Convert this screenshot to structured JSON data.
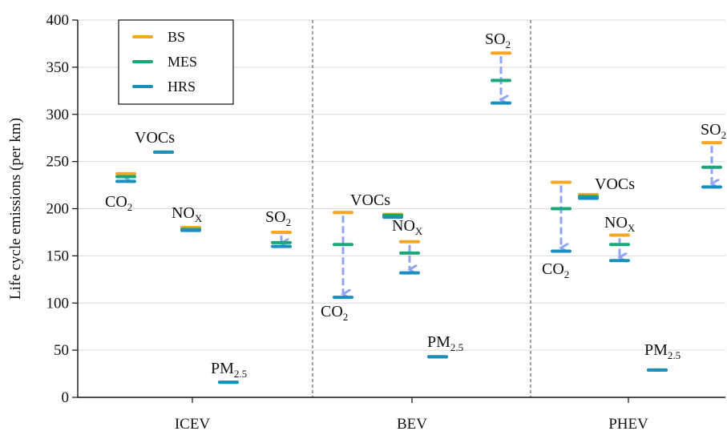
{
  "chart_data": {
    "type": "scatter",
    "ylabel": "Life cycle emissions (per km)",
    "ylim": [
      0,
      400
    ],
    "yticks": [
      0,
      50,
      100,
      150,
      200,
      250,
      300,
      350,
      400
    ],
    "grid": true,
    "legend_position": "top-left",
    "groups": [
      "ICEV",
      "BEV",
      "PHEV"
    ],
    "series": [
      {
        "name": "BS",
        "color": "#f5a623"
      },
      {
        "name": "MES",
        "color": "#1aa67a"
      },
      {
        "name": "HRS",
        "color": "#1a8fbf"
      }
    ],
    "arrow_color": "#7f96f0",
    "pollutants": [
      {
        "base": "CO",
        "sub": "2"
      },
      {
        "base": "VOCs",
        "sub": ""
      },
      {
        "base": "NO",
        "sub": "X"
      },
      {
        "base": "PM",
        "sub": "2.5"
      },
      {
        "base": "SO",
        "sub": "2"
      }
    ],
    "points": [
      {
        "group": "ICEV",
        "pollutant": "CO2",
        "BS": 237,
        "MES": 234,
        "HRS": 229
      },
      {
        "group": "ICEV",
        "pollutant": "VOCs",
        "BS": 260,
        "MES": 260,
        "HRS": 260
      },
      {
        "group": "ICEV",
        "pollutant": "NOx",
        "BS": 180,
        "MES": 178,
        "HRS": 177
      },
      {
        "group": "ICEV",
        "pollutant": "PM2.5",
        "BS": 16,
        "MES": 16,
        "HRS": 16
      },
      {
        "group": "ICEV",
        "pollutant": "SO2",
        "BS": 175,
        "MES": 164,
        "HRS": 160
      },
      {
        "group": "BEV",
        "pollutant": "CO2",
        "BS": 196,
        "MES": 162,
        "HRS": 106
      },
      {
        "group": "BEV",
        "pollutant": "VOCs",
        "BS": 194,
        "MES": 193,
        "HRS": 191
      },
      {
        "group": "BEV",
        "pollutant": "NOx",
        "BS": 165,
        "MES": 153,
        "HRS": 132
      },
      {
        "group": "BEV",
        "pollutant": "PM2.5",
        "BS": 43,
        "MES": 43,
        "HRS": 43
      },
      {
        "group": "BEV",
        "pollutant": "SO2",
        "BS": 365,
        "MES": 336,
        "HRS": 312
      },
      {
        "group": "PHEV",
        "pollutant": "CO2",
        "BS": 228,
        "MES": 200,
        "HRS": 155
      },
      {
        "group": "PHEV",
        "pollutant": "VOCs",
        "BS": 215,
        "MES": 213,
        "HRS": 211
      },
      {
        "group": "PHEV",
        "pollutant": "NOx",
        "BS": 172,
        "MES": 162,
        "HRS": 145
      },
      {
        "group": "PHEV",
        "pollutant": "PM2.5",
        "BS": 29,
        "MES": 29,
        "HRS": 29
      },
      {
        "group": "PHEV",
        "pollutant": "SO2",
        "BS": 270,
        "MES": 244,
        "HRS": 223
      }
    ]
  }
}
